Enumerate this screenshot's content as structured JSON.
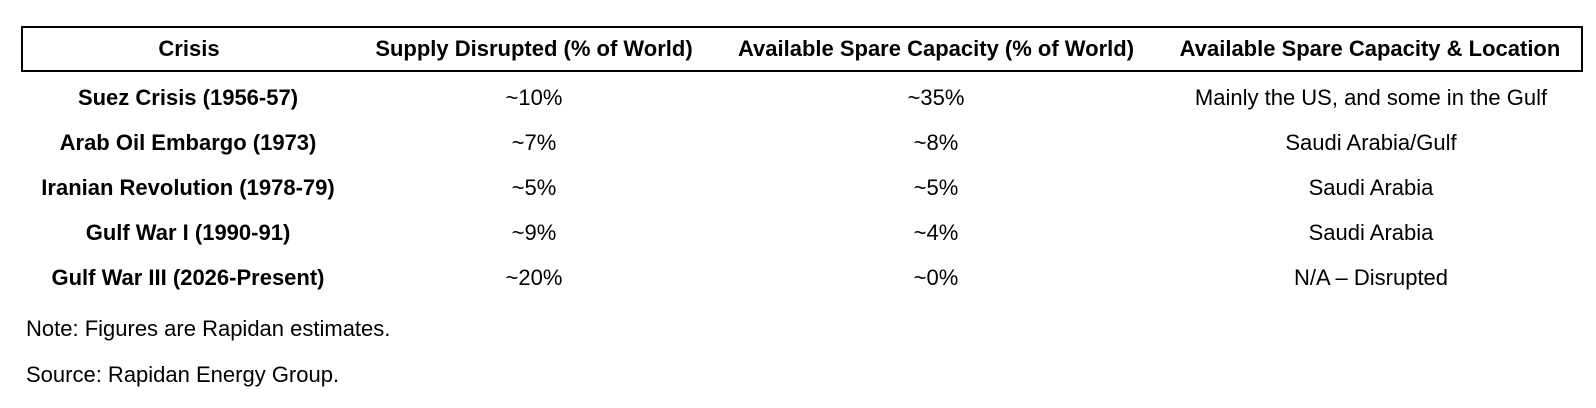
{
  "colors": {
    "background": "#ffffff",
    "text": "#000000",
    "header_border": "#000000"
  },
  "table": {
    "headers": [
      "Crisis",
      "Supply Disrupted (% of World)",
      "Available Spare Capacity (% of World)",
      "Available Spare Capacity & Location"
    ],
    "rows": [
      {
        "crisis": "Suez Crisis (1956-57)",
        "supply_disrupted": "~10%",
        "spare_capacity": "~35%",
        "location": "Mainly the US, and some in the Gulf"
      },
      {
        "crisis": "Arab Oil Embargo (1973)",
        "supply_disrupted": "~7%",
        "spare_capacity": "~8%",
        "location": "Saudi Arabia/Gulf"
      },
      {
        "crisis": "Iranian Revolution (1978-79)",
        "supply_disrupted": "~5%",
        "spare_capacity": "~5%",
        "location": "Saudi Arabia"
      },
      {
        "crisis": "Gulf War I (1990-91)",
        "supply_disrupted": "~9%",
        "spare_capacity": "~4%",
        "location": "Saudi Arabia"
      },
      {
        "crisis": "Gulf War III (2026-Present)",
        "supply_disrupted": "~20%",
        "spare_capacity": "~0%",
        "location": "N/A – Disrupted"
      }
    ]
  },
  "footnotes": {
    "note": "Note: Figures are Rapidan estimates.",
    "source": "Source: Rapidan Energy Group."
  },
  "chart_data": {
    "type": "table",
    "title": "",
    "columns": [
      "Crisis",
      "Supply Disrupted (% of World)",
      "Available Spare Capacity (% of World)",
      "Available Spare Capacity & Location"
    ],
    "rows": [
      [
        "Suez Crisis (1956-57)",
        "~10%",
        "~35%",
        "Mainly the US, and some in the Gulf"
      ],
      [
        "Arab Oil Embargo (1973)",
        "~7%",
        "~8%",
        "Saudi Arabia/Gulf"
      ],
      [
        "Iranian Revolution (1978-79)",
        "~5%",
        "~5%",
        "Saudi Arabia"
      ],
      [
        "Gulf War I (1990-91)",
        "~9%",
        "~4%",
        "Saudi Arabia"
      ],
      [
        "Gulf War III (2026-Present)",
        "~20%",
        "~0%",
        "N/A – Disrupted"
      ]
    ],
    "numeric": {
      "categories": [
        "Suez Crisis (1956-57)",
        "Arab Oil Embargo (1973)",
        "Iranian Revolution (1978-79)",
        "Gulf War I (1990-91)",
        "Gulf War III (2026-Present)"
      ],
      "series": [
        {
          "name": "Supply Disrupted (% of World)",
          "values": [
            10,
            7,
            5,
            9,
            20
          ],
          "approximate": true
        },
        {
          "name": "Available Spare Capacity (% of World)",
          "values": [
            35,
            8,
            5,
            4,
            0
          ],
          "approximate": true
        }
      ]
    },
    "note": "Note: Figures are Rapidan estimates.",
    "source": "Source: Rapidan Energy Group."
  }
}
